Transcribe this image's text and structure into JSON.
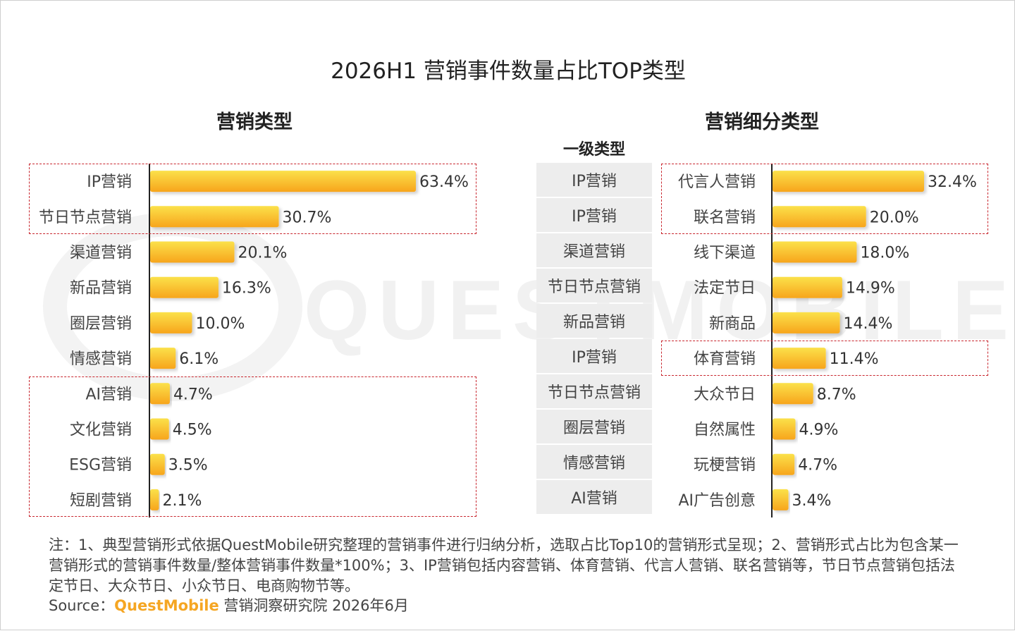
{
  "title": "2026H1 营销事件数量占比TOP类型",
  "left_subtitle": "营销类型",
  "right_subtitle": "营销细分类型",
  "level_header": "一级类型",
  "bar_gradient": [
    "#fbe14a",
    "#f7a51c"
  ],
  "highlight_color": "#c8262e",
  "watermark": "QUESTMOBILE",
  "chart_data": [
    {
      "type": "bar",
      "orientation": "horizontal",
      "title": "营销类型",
      "categories": [
        "IP营销",
        "节日节点营销",
        "渠道营销",
        "新品营销",
        "圈层营销",
        "情感营销",
        "AI营销",
        "文化营销",
        "ESG营销",
        "短剧营销"
      ],
      "values": [
        63.4,
        30.7,
        20.1,
        16.3,
        10.0,
        6.1,
        4.7,
        4.5,
        3.5,
        2.1
      ],
      "value_labels": [
        "63.4%",
        "30.7%",
        "20.1%",
        "16.3%",
        "10.0%",
        "6.1%",
        "4.7%",
        "4.5%",
        "3.5%",
        "2.1%"
      ],
      "unit": "%"
    },
    {
      "type": "bar",
      "orientation": "horizontal",
      "title": "营销细分类型",
      "categories": [
        "代言人营销",
        "联名营销",
        "线下渠道",
        "法定节日",
        "新商品",
        "体育营销",
        "大众节日",
        "自然属性",
        "玩梗营销",
        "AI广告创意"
      ],
      "parent_categories": [
        "IP营销",
        "IP营销",
        "渠道营销",
        "节日节点营销",
        "新品营销",
        "IP营销",
        "节日节点营销",
        "圈层营销",
        "情感营销",
        "AI营销"
      ],
      "values": [
        32.4,
        20.0,
        18.0,
        14.9,
        14.4,
        11.4,
        8.7,
        4.9,
        4.7,
        3.4
      ],
      "value_labels": [
        "32.4%",
        "20.0%",
        "18.0%",
        "14.9%",
        "14.4%",
        "11.4%",
        "8.7%",
        "4.9%",
        "4.7%",
        "3.4%"
      ],
      "unit": "%"
    }
  ],
  "notes": "注：1、典型营销形式依据QuestMobile研究整理的营销事件进行归纳分析，选取占比Top10的营销形式呈现；2、营销形式占比为包含某一营销形式的营销事件数量/整体营销事件数量*100%；3、IP营销包括内容营销、体育营销、代言人营销、联名营销等，节日节点营销包括法定节日、大众节日、小众节日、电商购物节等。",
  "source": {
    "label": "Source：",
    "brand": "QuestMobile",
    "rest": " 营销洞察研究院 2026年6月"
  }
}
